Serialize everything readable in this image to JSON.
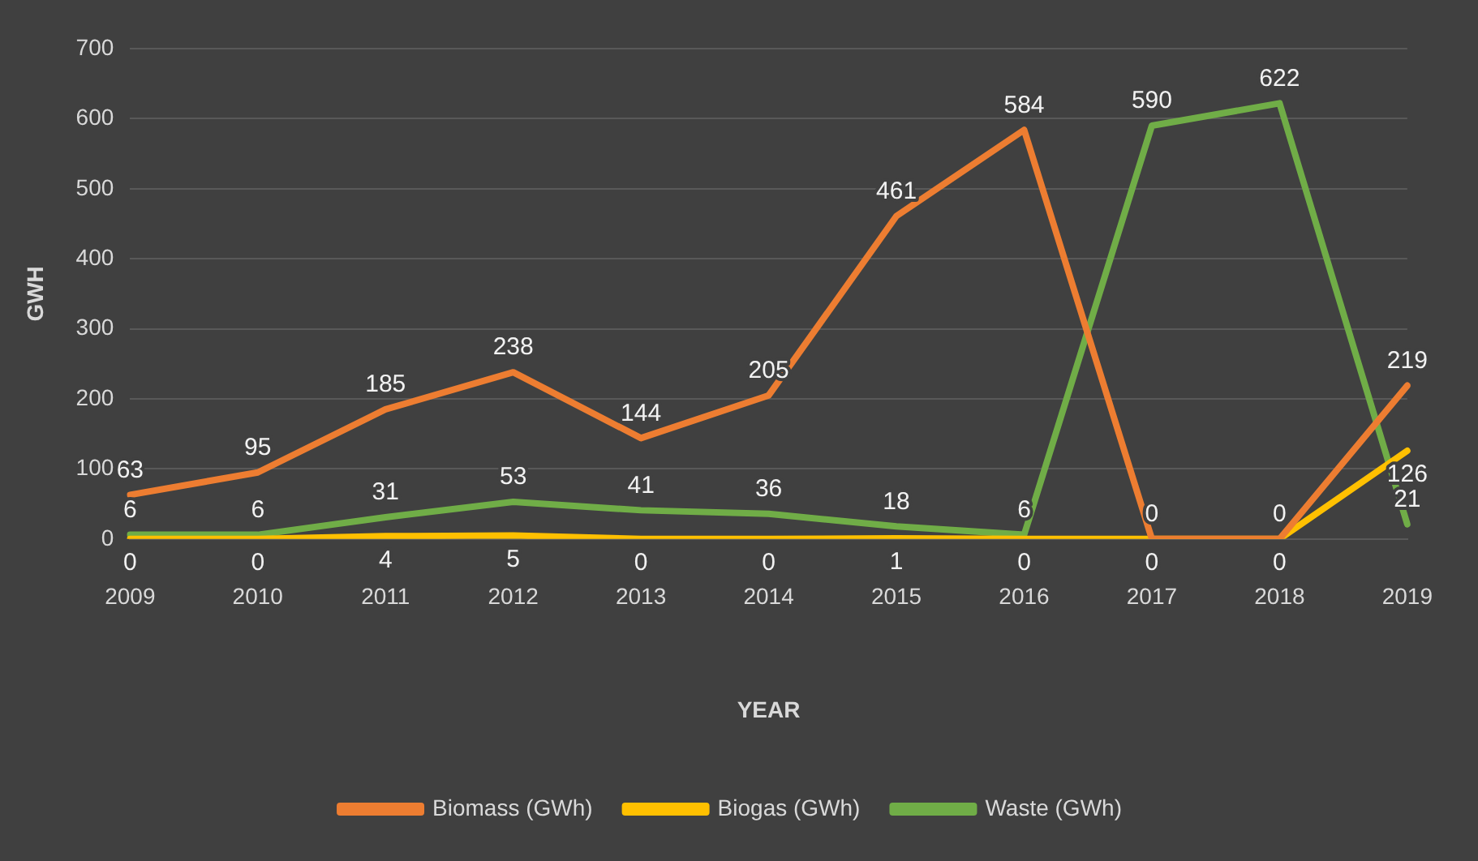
{
  "chart_data": {
    "type": "line",
    "xlabel": "YEAR",
    "ylabel": "GWH",
    "categories": [
      "2009",
      "2010",
      "2011",
      "2012",
      "2013",
      "2014",
      "2015",
      "2016",
      "2017",
      "2018",
      "2019"
    ],
    "series": [
      {
        "name": "Biomass (GWh)",
        "color": "#ed7d31",
        "values": [
          63,
          95,
          185,
          238,
          144,
          205,
          461,
          584,
          0,
          0,
          219
        ]
      },
      {
        "name": "Biogas (GWh)",
        "color": "#ffc000",
        "values": [
          0,
          0,
          4,
          5,
          0,
          0,
          1,
          0,
          0,
          0,
          126
        ]
      },
      {
        "name": "Waste (GWh)",
        "color": "#70ad47",
        "values": [
          6,
          6,
          31,
          53,
          41,
          36,
          18,
          6,
          590,
          622,
          21
        ]
      }
    ],
    "ylim": [
      0,
      700
    ],
    "yticks": [
      0,
      100,
      200,
      300,
      400,
      500,
      600,
      700
    ],
    "grid": "y",
    "legend": "bottom",
    "data_labels": true,
    "marker": "none",
    "line_style": "solid"
  }
}
